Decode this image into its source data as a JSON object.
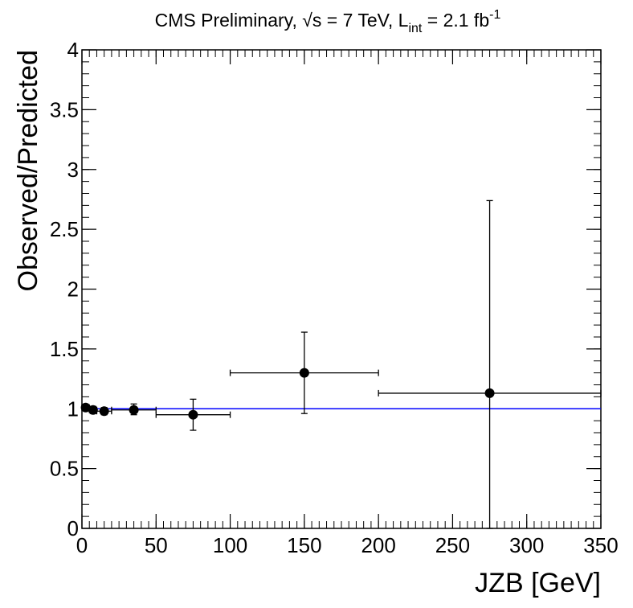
{
  "chart_data": {
    "type": "scatter",
    "title": {
      "lead": "CMS Preliminary, ",
      "sqrt_symbol": "√",
      "energy": "s = 7 TeV, L",
      "lumi_sub": "int",
      "lumi_value": " = 2.1 fb",
      "lumi_unit_exp": "-1"
    },
    "xlabel": "JZB [GeV]",
    "ylabel": "Observed/Predicted",
    "xlim": [
      0,
      350
    ],
    "ylim": [
      0,
      4
    ],
    "x_ticks": [
      0,
      50,
      100,
      150,
      200,
      250,
      300,
      350
    ],
    "x_tick_labels": [
      "0",
      "50",
      "100",
      "150",
      "200",
      "250",
      "300",
      "350"
    ],
    "y_ticks": [
      0,
      0.5,
      1,
      1.5,
      2,
      2.5,
      3,
      3.5,
      4
    ],
    "y_tick_labels": [
      "0",
      "0.5",
      "1",
      "1.5",
      "2",
      "2.5",
      "3",
      "3.5",
      "4"
    ],
    "reference_line": {
      "y": 1,
      "color": "#0000ff"
    },
    "points": [
      {
        "x": 2.5,
        "xlo": 0,
        "xhi": 5,
        "y": 1.01,
        "ylo": 0.99,
        "yhi": 1.03
      },
      {
        "x": 7.5,
        "xlo": 5,
        "xhi": 10,
        "y": 0.99,
        "ylo": 0.96,
        "yhi": 1.02
      },
      {
        "x": 15,
        "xlo": 10,
        "xhi": 20,
        "y": 0.98,
        "ylo": 0.95,
        "yhi": 1.01
      },
      {
        "x": 35,
        "xlo": 20,
        "xhi": 50,
        "y": 0.99,
        "ylo": 0.95,
        "yhi": 1.04
      },
      {
        "x": 75,
        "xlo": 50,
        "xhi": 100,
        "y": 0.95,
        "ylo": 0.82,
        "yhi": 1.08
      },
      {
        "x": 150,
        "xlo": 100,
        "xhi": 200,
        "y": 1.3,
        "ylo": 0.96,
        "yhi": 1.64
      },
      {
        "x": 275,
        "xlo": 200,
        "xhi": 350,
        "y": 1.13,
        "ylo": 0.0,
        "yhi": 2.74
      }
    ],
    "marker_color": "#000000"
  }
}
